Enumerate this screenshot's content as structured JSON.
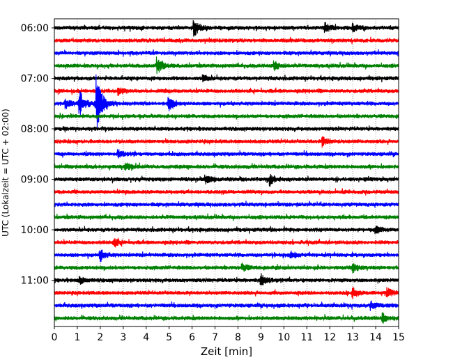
{
  "chart_data": {
    "type": "line",
    "title": "",
    "xlabel": "Zeit  [min]",
    "ylabel": "UTC (Lokalzeit = UTC + 02:00)",
    "xlim": [
      0,
      15
    ],
    "x_ticks": [
      "0",
      "1",
      "2",
      "3",
      "4",
      "5",
      "6",
      "7",
      "8",
      "9",
      "10",
      "11",
      "12",
      "13",
      "14",
      "15"
    ],
    "y_tick_labels": [
      "06:00",
      "07:00",
      "08:00",
      "09:00",
      "10:00",
      "11:00"
    ],
    "grid": "vertical dotted",
    "trace_colors": [
      "#000000",
      "#ff0000",
      "#0000ff",
      "#008000"
    ],
    "trace_start_times": [
      "06:00",
      "06:15",
      "06:30",
      "06:45",
      "07:00",
      "07:15",
      "07:30",
      "07:45",
      "08:00",
      "08:15",
      "08:30",
      "08:45",
      "09:00",
      "09:15",
      "09:30",
      "09:45",
      "10:00",
      "10:15",
      "10:30",
      "10:45",
      "11:00",
      "11:15",
      "11:30",
      "11:45"
    ],
    "events": [
      {
        "trace": 0,
        "minute": 6.1,
        "amp": 11
      },
      {
        "trace": 0,
        "minute": 11.8,
        "amp": 6
      },
      {
        "trace": 0,
        "minute": 13.0,
        "amp": 5
      },
      {
        "trace": 3,
        "minute": 4.5,
        "amp": 10
      },
      {
        "trace": 3,
        "minute": 9.6,
        "amp": 6
      },
      {
        "trace": 4,
        "minute": 6.5,
        "amp": 4
      },
      {
        "trace": 5,
        "minute": 2.8,
        "amp": 5
      },
      {
        "trace": 6,
        "minute": 1.1,
        "amp": 17
      },
      {
        "trace": 6,
        "minute": 1.85,
        "amp": 38
      },
      {
        "trace": 6,
        "minute": 5.0,
        "amp": 10
      },
      {
        "trace": 6,
        "minute": 0.5,
        "amp": 6
      },
      {
        "trace": 9,
        "minute": 11.7,
        "amp": 6
      },
      {
        "trace": 10,
        "minute": 2.8,
        "amp": 5
      },
      {
        "trace": 11,
        "minute": 3.1,
        "amp": 5
      },
      {
        "trace": 12,
        "minute": 6.6,
        "amp": 6
      },
      {
        "trace": 12,
        "minute": 9.4,
        "amp": 7
      },
      {
        "trace": 16,
        "minute": 14.0,
        "amp": 4
      },
      {
        "trace": 17,
        "minute": 2.6,
        "amp": 6
      },
      {
        "trace": 18,
        "minute": 2.0,
        "amp": 8
      },
      {
        "trace": 18,
        "minute": 10.3,
        "amp": 5
      },
      {
        "trace": 19,
        "minute": 8.2,
        "amp": 5
      },
      {
        "trace": 19,
        "minute": 13.0,
        "amp": 6
      },
      {
        "trace": 20,
        "minute": 9.0,
        "amp": 8
      },
      {
        "trace": 20,
        "minute": 1.1,
        "amp": 5
      },
      {
        "trace": 21,
        "minute": 13.0,
        "amp": 7
      },
      {
        "trace": 21,
        "minute": 14.5,
        "amp": 6
      },
      {
        "trace": 22,
        "minute": 13.8,
        "amp": 6
      },
      {
        "trace": 23,
        "minute": 14.3,
        "amp": 6
      }
    ]
  }
}
